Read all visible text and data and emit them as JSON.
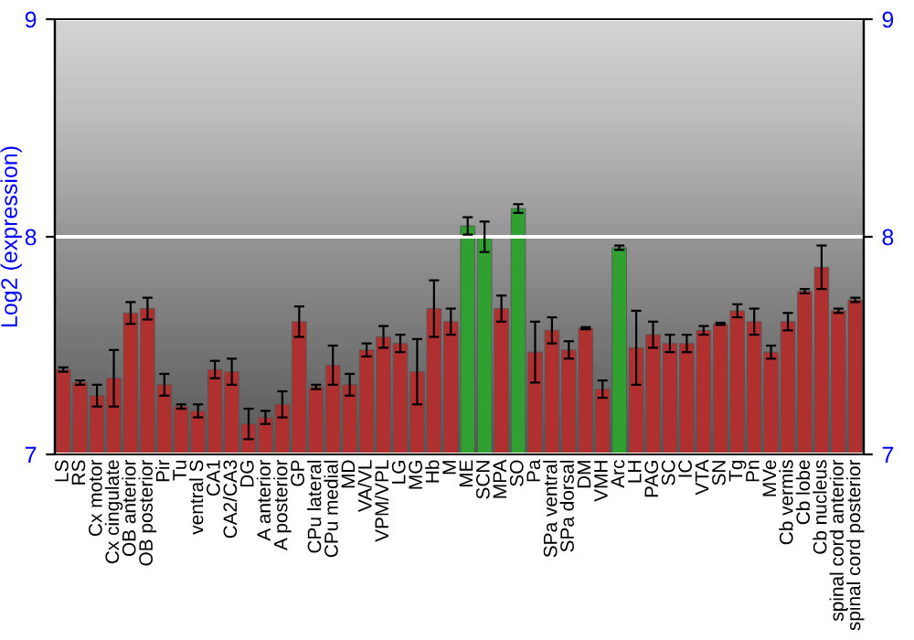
{
  "chart_data": {
    "type": "bar",
    "ylabel": "Log2 (expression)",
    "categories": [
      "LS",
      "RS",
      "Cx motor",
      "Cx cingulate",
      "OB anterior",
      "OB posterior",
      "Pir",
      "Tu",
      "ventral S",
      "CA1",
      "CA2/CA3",
      "DG",
      "A anterior",
      "A posterior",
      "GP",
      "CPu lateral",
      "CPu medial",
      "MD",
      "VA/VL",
      "VPM/VPL",
      "LG",
      "MG",
      "Hb",
      "M",
      "ME",
      "SCN",
      "MPA",
      "SO",
      "Pa",
      "SPa ventral",
      "SPa dorsal",
      "DM",
      "VMH",
      "Arc",
      "LH",
      "PAG",
      "SC",
      "IC",
      "VTA",
      "SN",
      "Tg",
      "Pn",
      "MVe",
      "Cb vermis",
      "Cb lobe",
      "Cb nucleus",
      "spinal cord anterior",
      "spinal cord posterior"
    ],
    "values": [
      7.39,
      7.33,
      7.27,
      7.35,
      7.65,
      7.67,
      7.32,
      7.22,
      7.2,
      7.39,
      7.38,
      7.14,
      7.17,
      7.23,
      7.61,
      7.31,
      7.41,
      7.32,
      7.48,
      7.54,
      7.51,
      7.38,
      7.67,
      7.61,
      8.05,
      8.0,
      7.67,
      8.13,
      7.47,
      7.57,
      7.48,
      7.58,
      7.3,
      7.95,
      7.49,
      7.55,
      7.51,
      7.51,
      7.57,
      7.6,
      7.66,
      7.61,
      7.47,
      7.61,
      7.75,
      7.86,
      7.66,
      7.71
    ],
    "errors": [
      0.01,
      0.01,
      0.05,
      0.13,
      0.05,
      0.05,
      0.05,
      0.01,
      0.03,
      0.04,
      0.06,
      0.07,
      0.03,
      0.06,
      0.07,
      0.01,
      0.09,
      0.05,
      0.03,
      0.05,
      0.04,
      0.15,
      0.13,
      0.06,
      0.04,
      0.07,
      0.06,
      0.02,
      0.14,
      0.06,
      0.04,
      0.005,
      0.04,
      0.01,
      0.17,
      0.06,
      0.04,
      0.04,
      0.02,
      0.005,
      0.03,
      0.06,
      0.03,
      0.04,
      0.01,
      0.1,
      0.01,
      0.01
    ],
    "colors": [
      "#b03030",
      "#b03030",
      "#b03030",
      "#b03030",
      "#b03030",
      "#b03030",
      "#b03030",
      "#b03030",
      "#b03030",
      "#b03030",
      "#b03030",
      "#b03030",
      "#b03030",
      "#b03030",
      "#b03030",
      "#b03030",
      "#b03030",
      "#b03030",
      "#b03030",
      "#b03030",
      "#b03030",
      "#b03030",
      "#b03030",
      "#b03030",
      "#30a030",
      "#30a030",
      "#b03030",
      "#30a030",
      "#b03030",
      "#b03030",
      "#b03030",
      "#b03030",
      "#b03030",
      "#30a030",
      "#b03030",
      "#b03030",
      "#b03030",
      "#b03030",
      "#b03030",
      "#b03030",
      "#b03030",
      "#b03030",
      "#b03030",
      "#b03030",
      "#b03030",
      "#b03030",
      "#b03030",
      "#b03030"
    ],
    "ylim": [
      7,
      9
    ],
    "yticks": [
      7,
      8,
      9
    ],
    "y2lim": [
      7,
      9
    ],
    "y2ticks": [
      7,
      8,
      9
    ],
    "grid": "y"
  }
}
